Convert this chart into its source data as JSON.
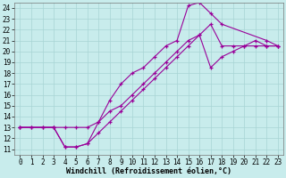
{
  "xlabel": "Windchill (Refroidissement éolien,°C)",
  "xlim": [
    -0.5,
    23.5
  ],
  "ylim": [
    10.5,
    24.5
  ],
  "xticks": [
    0,
    1,
    2,
    3,
    4,
    5,
    6,
    7,
    8,
    9,
    10,
    11,
    12,
    13,
    14,
    15,
    16,
    17,
    18,
    19,
    20,
    21,
    22,
    23
  ],
  "yticks": [
    11,
    12,
    13,
    14,
    15,
    16,
    17,
    18,
    19,
    20,
    21,
    22,
    23,
    24
  ],
  "bg_color": "#c8ecec",
  "grid_color": "#a8d4d4",
  "line_color": "#990099",
  "line1_x": [
    0,
    1,
    2,
    3,
    4,
    5,
    6,
    7,
    8,
    9,
    10,
    11,
    12,
    13,
    14,
    15,
    16,
    17,
    18,
    19,
    20,
    21,
    22,
    23
  ],
  "line1_y": [
    13.0,
    13.0,
    13.0,
    13.0,
    11.2,
    11.2,
    11.5,
    12.5,
    13.5,
    14.5,
    15.5,
    16.5,
    17.5,
    18.5,
    19.5,
    20.5,
    21.5,
    22.5,
    20.5,
    20.5,
    20.5,
    20.5,
    20.5,
    20.5
  ],
  "line2_x": [
    0,
    3,
    4,
    5,
    6,
    7,
    8,
    9,
    10,
    11,
    12,
    13,
    14,
    15,
    16,
    17,
    18,
    22,
    23
  ],
  "line2_y": [
    13.0,
    13.0,
    11.2,
    11.2,
    11.5,
    13.5,
    15.5,
    17.0,
    18.0,
    18.5,
    19.5,
    20.5,
    21.0,
    24.2,
    24.5,
    23.5,
    22.5,
    21.0,
    20.5
  ],
  "line3_x": [
    0,
    1,
    2,
    3,
    4,
    5,
    6,
    7,
    8,
    9,
    10,
    11,
    12,
    13,
    14,
    15,
    16,
    17,
    18,
    19,
    20,
    21,
    22,
    23
  ],
  "line3_y": [
    13.0,
    13.0,
    13.0,
    13.0,
    13.0,
    13.0,
    13.0,
    13.5,
    14.5,
    15.0,
    16.0,
    17.0,
    18.0,
    19.0,
    20.0,
    21.0,
    21.5,
    18.5,
    19.5,
    20.0,
    20.5,
    21.0,
    20.5,
    20.5
  ],
  "tick_fontsize": 5.5,
  "xlabel_fontsize": 6.0
}
